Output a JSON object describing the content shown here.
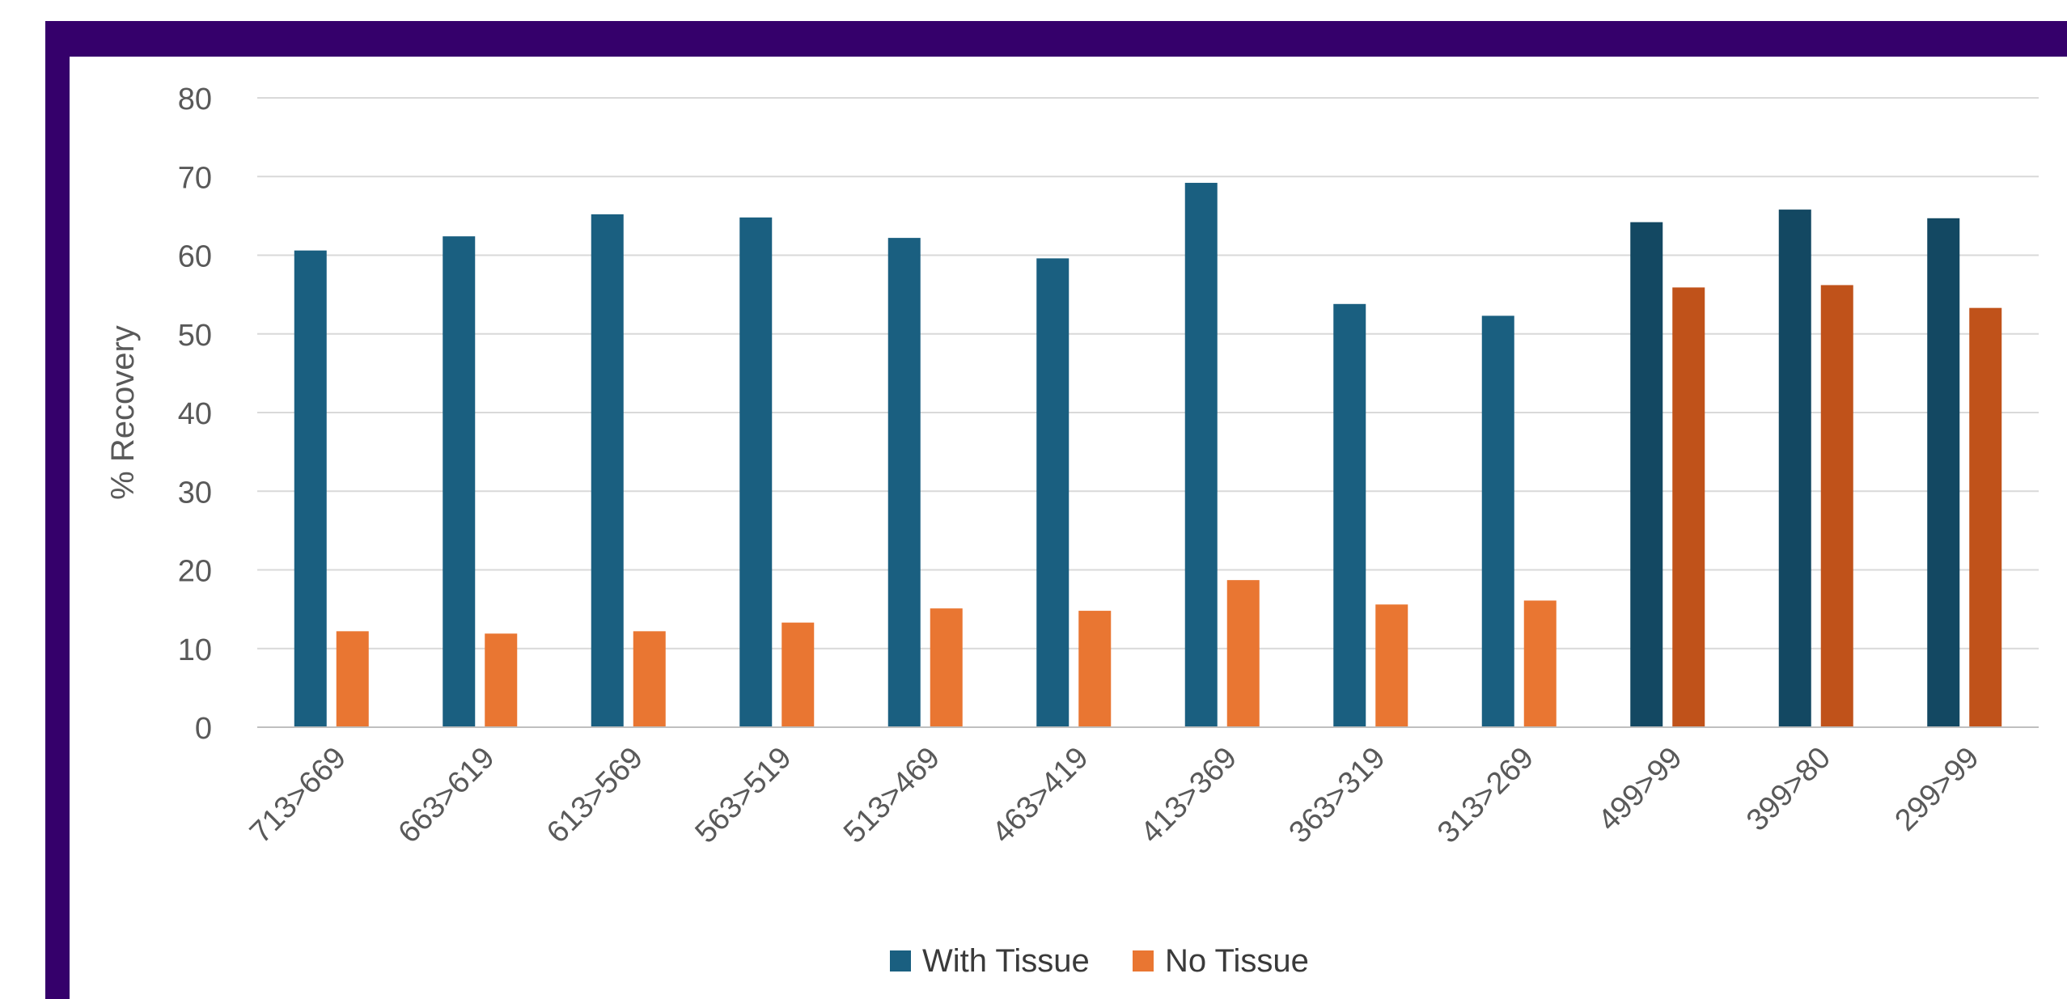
{
  "chart_data": {
    "type": "bar",
    "ylabel": "% Recovery",
    "xlabel": "",
    "ylim": [
      0,
      80
    ],
    "yticks": [
      0,
      10,
      20,
      30,
      40,
      50,
      60,
      70,
      80
    ],
    "grid": true,
    "legend_position": "bottom",
    "categories": [
      "713>669",
      "663>619",
      "613>569",
      "563>519",
      "513>469",
      "463>419",
      "413>369",
      "363>319",
      "313>269",
      "499>99",
      "399>80",
      "299>99"
    ],
    "series": [
      {
        "name": "With Tissue",
        "color": "#1a5f80",
        "values": [
          60.6,
          62.4,
          65.2,
          64.8,
          62.2,
          59.6,
          69.2,
          53.8,
          52.3,
          64.2,
          65.8,
          64.7
        ]
      },
      {
        "name": "No Tissue",
        "color": "#e97632",
        "values": [
          12.2,
          11.9,
          12.2,
          13.3,
          15.1,
          14.8,
          18.7,
          15.6,
          16.1,
          55.9,
          56.2,
          53.3
        ]
      }
    ],
    "highlight": {
      "categories_from_index": 9,
      "colors": [
        "#134862",
        "#c0521a"
      ]
    }
  }
}
